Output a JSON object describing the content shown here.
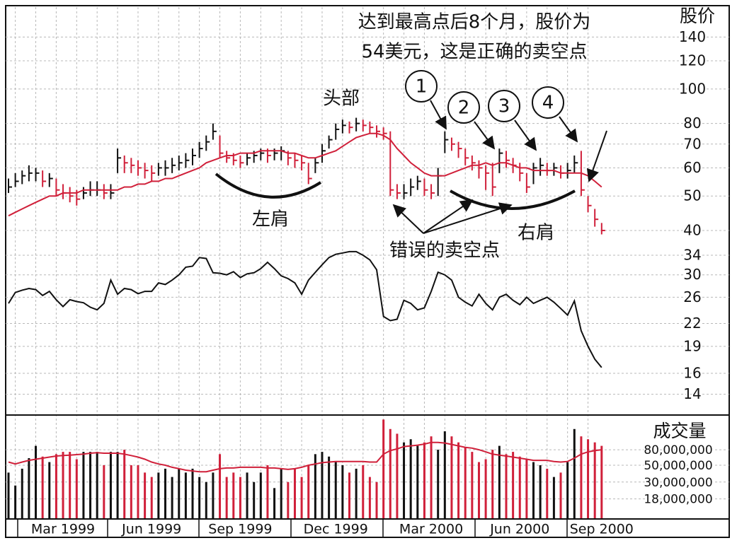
{
  "chart_data": [
    {
      "type": "ohlc",
      "y_label": "股价",
      "log_scale": true,
      "grid": true,
      "up_color": "#111111",
      "down_color": "#d0203a",
      "ylim": [
        37,
        170
      ],
      "yticks": [
        40,
        50,
        60,
        70,
        80,
        100,
        120,
        140
      ],
      "high": [
        56,
        58,
        59,
        61,
        60,
        59,
        58,
        56,
        54,
        53,
        52,
        53,
        55,
        55,
        54,
        54,
        68,
        65,
        64,
        63,
        62,
        61,
        62,
        63,
        64,
        65,
        66,
        68,
        71,
        74,
        80,
        74,
        67,
        66,
        65,
        66,
        67,
        68,
        68,
        68,
        69,
        67,
        66,
        65,
        62,
        64,
        70,
        74,
        80,
        82,
        81,
        83,
        82,
        81,
        79,
        78,
        76,
        54,
        54,
        56,
        57,
        56,
        54,
        60,
        76,
        73,
        71,
        68,
        65,
        63,
        61,
        62,
        68,
        67,
        64,
        62,
        58,
        62,
        64,
        62,
        62,
        61,
        62,
        65,
        67,
        50,
        46,
        42
      ],
      "low": [
        51,
        53,
        54,
        55,
        55,
        53,
        53,
        50,
        49,
        48,
        47,
        49,
        50,
        50,
        49,
        49,
        58,
        58,
        58,
        57,
        56,
        55,
        57,
        57,
        58,
        59,
        60,
        61,
        64,
        67,
        72,
        64,
        62,
        61,
        60,
        61,
        62,
        63,
        62,
        63,
        63,
        61,
        60,
        59,
        54,
        58,
        62,
        68,
        72,
        75,
        75,
        76,
        76,
        75,
        73,
        72,
        50,
        49,
        49,
        50,
        52,
        50,
        49,
        50,
        66,
        67,
        64,
        61,
        59,
        56,
        52,
        50,
        58,
        60,
        58,
        55,
        51,
        54,
        57,
        57,
        57,
        56,
        56,
        58,
        50,
        45,
        41,
        39
      ],
      "close": [
        53,
        55,
        57,
        58,
        58,
        55,
        56,
        52,
        51,
        50,
        49,
        51,
        52,
        52,
        51,
        51,
        64,
        62,
        61,
        60,
        59,
        58,
        60,
        60,
        61,
        62,
        63,
        65,
        68,
        71,
        76,
        66,
        64,
        63,
        62,
        64,
        65,
        66,
        65,
        66,
        67,
        64,
        63,
        62,
        56,
        62,
        67,
        72,
        77,
        79,
        78,
        80,
        79,
        78,
        76,
        75,
        52,
        51,
        51,
        53,
        55,
        52,
        51,
        57,
        72,
        70,
        68,
        64,
        62,
        60,
        58,
        53,
        66,
        63,
        61,
        58,
        53,
        60,
        61,
        59,
        60,
        58,
        59,
        62,
        52,
        47,
        43,
        40
      ],
      "moving_average": {
        "color": "#d0203a",
        "values": [
          44,
          45,
          46,
          47,
          48,
          49,
          50,
          50,
          51,
          51,
          51,
          52,
          52,
          52,
          52,
          52,
          52,
          53,
          53,
          54,
          54,
          55,
          55,
          56,
          56,
          57,
          58,
          59,
          60,
          62,
          63,
          64,
          65,
          65,
          66,
          66,
          66,
          67,
          67,
          67,
          67,
          66,
          66,
          65,
          64,
          64,
          65,
          66,
          67,
          69,
          71,
          73,
          74,
          75,
          75,
          74,
          72,
          68,
          65,
          62,
          60,
          58,
          57,
          57,
          57,
          58,
          59,
          60,
          61,
          61,
          62,
          61,
          62,
          62,
          61,
          60,
          60,
          59,
          59,
          59,
          59,
          58,
          58,
          58,
          58,
          57,
          55,
          53
        ]
      },
      "annotations": {
        "top_note": [
          "达到最高点后8个月，股价为",
          "54美元，这是正确的卖空点"
        ],
        "head": "头部",
        "left_shoulder": "左肩",
        "right_shoulder": "右肩",
        "false_short": "错误的卖空点",
        "markers": [
          "1",
          "2",
          "3",
          "4"
        ]
      }
    },
    {
      "type": "line",
      "log_scale": true,
      "grid": true,
      "color": "#111111",
      "ylim": [
        13,
        40
      ],
      "yticks": [
        14,
        16,
        19,
        22,
        26,
        30,
        34
      ],
      "values": [
        25,
        26.8,
        27.2,
        27.5,
        27.3,
        26.3,
        27,
        25.6,
        24.5,
        25.6,
        25.3,
        25.1,
        24.4,
        24,
        25,
        29,
        26.5,
        27.5,
        27.3,
        26.6,
        27,
        27,
        28.5,
        28.2,
        29,
        30,
        31.5,
        31.7,
        33.5,
        33.3,
        30.4,
        30.3,
        30,
        30.6,
        29.5,
        30.2,
        30.4,
        31.2,
        32.5,
        31.2,
        29.8,
        29.3,
        28.5,
        26.5,
        29,
        30.5,
        32,
        33.5,
        34.2,
        34.5,
        34.8,
        34.8,
        34,
        33,
        31,
        23,
        22.4,
        22.6,
        25.5,
        25,
        24,
        24.3,
        27,
        30.5,
        30,
        29,
        26,
        25.2,
        24.6,
        26.5,
        25,
        24,
        26,
        26.5,
        25.5,
        24.8,
        26,
        25,
        25.5,
        26,
        25.2,
        24.2,
        23.2,
        25.4,
        21,
        19,
        17.5,
        16.6
      ]
    },
    {
      "type": "bar",
      "y_label": "成交量",
      "log_scale": true,
      "grid": true,
      "ylim": [
        10000000,
        215000000
      ],
      "yticks": [
        {
          "value": 18000000,
          "label": "18,000,000"
        },
        {
          "value": 30000000,
          "label": "30,000,000"
        },
        {
          "value": 50000000,
          "label": "50,000,000"
        },
        {
          "value": 80000000,
          "label": "80,000,000"
        }
      ],
      "categories": [
        null,
        null,
        null,
        null,
        null,
        null,
        null,
        null,
        "Mar 1999",
        null,
        null,
        null,
        null,
        null,
        null,
        null,
        null,
        null,
        null,
        null,
        null,
        "Jun 1999",
        null,
        null,
        null,
        null,
        null,
        null,
        null,
        null,
        null,
        null,
        null,
        null,
        "Sep 1999",
        null,
        null,
        null,
        null,
        null,
        null,
        null,
        null,
        null,
        null,
        null,
        null,
        null,
        "Dec 1999",
        null,
        null,
        null,
        null,
        null,
        null,
        null,
        null,
        null,
        null,
        null,
        null,
        null,
        "Mar 2000",
        null,
        null,
        null,
        null,
        null,
        null,
        null,
        null,
        null,
        null,
        null,
        null,
        "Jun 2000",
        null,
        null,
        null,
        null,
        null,
        null,
        null,
        null,
        null,
        null,
        null,
        "Sep 2000"
      ],
      "values": [
        40000000,
        27000000,
        45000000,
        62000000,
        90000000,
        65000000,
        55000000,
        70000000,
        75000000,
        75000000,
        60000000,
        75000000,
        75000000,
        75000000,
        50000000,
        75000000,
        75000000,
        80000000,
        50000000,
        50000000,
        40000000,
        35000000,
        40000000,
        45000000,
        35000000,
        45000000,
        40000000,
        45000000,
        35000000,
        30000000,
        40000000,
        70000000,
        35000000,
        40000000,
        35000000,
        40000000,
        30000000,
        40000000,
        50000000,
        25000000,
        45000000,
        30000000,
        45000000,
        35000000,
        50000000,
        70000000,
        75000000,
        65000000,
        55000000,
        50000000,
        40000000,
        45000000,
        50000000,
        35000000,
        30000000,
        200000000,
        150000000,
        130000000,
        100000000,
        110000000,
        90000000,
        100000000,
        120000000,
        80000000,
        140000000,
        120000000,
        100000000,
        85000000,
        75000000,
        55000000,
        60000000,
        80000000,
        90000000,
        70000000,
        75000000,
        65000000,
        60000000,
        55000000,
        50000000,
        45000000,
        35000000,
        40000000,
        55000000,
        150000000,
        120000000,
        110000000,
        100000000,
        90000000
      ],
      "moving_average": {
        "color": "#d0203a",
        "values": [
          55000000,
          52000000,
          55000000,
          58000000,
          60000000,
          62000000,
          64000000,
          66000000,
          67000000,
          68000000,
          69000000,
          70000000,
          72000000,
          73000000,
          72000000,
          72000000,
          72000000,
          70000000,
          67000000,
          64000000,
          60000000,
          55000000,
          52000000,
          50000000,
          47000000,
          45000000,
          43000000,
          42000000,
          41000000,
          41000000,
          43000000,
          45000000,
          46000000,
          46000000,
          47000000,
          47000000,
          47000000,
          47000000,
          46000000,
          46000000,
          45000000,
          44000000,
          45000000,
          47000000,
          50000000,
          52000000,
          54000000,
          55000000,
          56000000,
          56000000,
          56000000,
          56000000,
          56000000,
          55000000,
          55000000,
          70000000,
          78000000,
          82000000,
          88000000,
          90000000,
          92000000,
          95000000,
          100000000,
          100000000,
          98000000,
          94000000,
          90000000,
          86000000,
          84000000,
          80000000,
          75000000,
          70000000,
          68000000,
          66000000,
          64000000,
          62000000,
          60000000,
          58000000,
          58000000,
          58000000,
          56000000,
          55000000,
          56000000,
          62000000,
          70000000,
          75000000,
          78000000,
          80000000
        ]
      }
    }
  ]
}
